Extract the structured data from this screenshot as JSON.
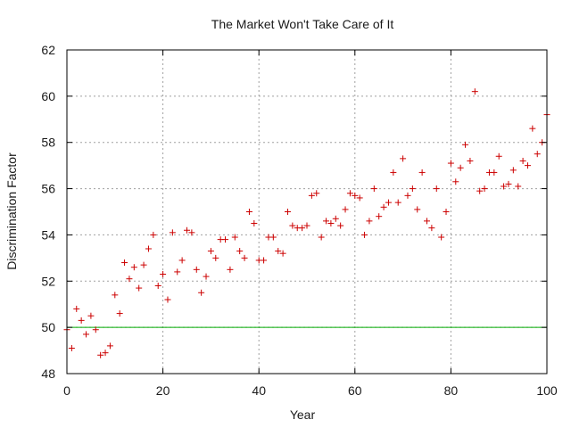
{
  "chart_data": {
    "type": "scatter",
    "title": "The Market Won't Take Care of It",
    "xlabel": "Year",
    "ylabel": "Discrimination Factor",
    "xlim": [
      0,
      100
    ],
    "ylim": [
      48,
      62
    ],
    "xticks": [
      0,
      20,
      40,
      60,
      80,
      100
    ],
    "yticks": [
      48,
      50,
      52,
      54,
      56,
      58,
      60,
      62
    ],
    "grid": true,
    "reference_line": {
      "y": 50,
      "color": "#00aa00"
    },
    "series": [
      {
        "name": "Discrimination Factor",
        "marker": "+",
        "color": "#cc0000",
        "x": [
          0,
          1,
          2,
          3,
          4,
          5,
          6,
          7,
          8,
          9,
          10,
          11,
          12,
          13,
          14,
          15,
          16,
          17,
          18,
          19,
          20,
          21,
          22,
          23,
          24,
          25,
          26,
          27,
          28,
          29,
          30,
          31,
          32,
          33,
          34,
          35,
          36,
          37,
          38,
          39,
          40,
          41,
          42,
          43,
          44,
          45,
          46,
          47,
          48,
          49,
          50,
          51,
          52,
          53,
          54,
          55,
          56,
          57,
          58,
          59,
          60,
          61,
          62,
          63,
          64,
          65,
          66,
          67,
          68,
          69,
          70,
          71,
          72,
          73,
          74,
          75,
          76,
          77,
          78,
          79,
          80,
          81,
          82,
          83,
          84,
          85,
          86,
          87,
          88,
          89,
          90,
          91,
          92,
          93,
          94,
          95,
          96,
          97,
          98,
          99,
          100
        ],
        "y": [
          49.9,
          49.1,
          50.8,
          50.3,
          49.7,
          50.5,
          49.9,
          48.8,
          48.9,
          49.2,
          51.4,
          50.6,
          52.8,
          52.1,
          52.6,
          51.7,
          52.7,
          53.4,
          54.0,
          51.8,
          52.3,
          51.2,
          54.1,
          52.4,
          52.9,
          54.2,
          54.1,
          52.5,
          51.5,
          52.2,
          53.3,
          53.0,
          53.8,
          53.8,
          52.5,
          53.9,
          53.3,
          53.0,
          55.0,
          54.5,
          52.9,
          52.9,
          53.9,
          53.9,
          53.3,
          53.2,
          55.0,
          54.4,
          54.3,
          54.3,
          54.4,
          55.7,
          55.8,
          53.9,
          54.6,
          54.5,
          54.7,
          54.4,
          55.1,
          55.8,
          55.7,
          55.6,
          54.0,
          54.6,
          56.0,
          54.8,
          55.2,
          55.4,
          56.7,
          55.4,
          57.3,
          55.7,
          56.0,
          55.1,
          56.7,
          54.6,
          54.3,
          56.0,
          53.9,
          55.0,
          57.1,
          56.3,
          56.9,
          57.9,
          57.2,
          60.2,
          55.9,
          56.0,
          56.7,
          56.7,
          57.4,
          56.1,
          56.2,
          56.8,
          56.1,
          57.2,
          57.0,
          58.6,
          57.5,
          58.0,
          59.2
        ]
      }
    ]
  }
}
